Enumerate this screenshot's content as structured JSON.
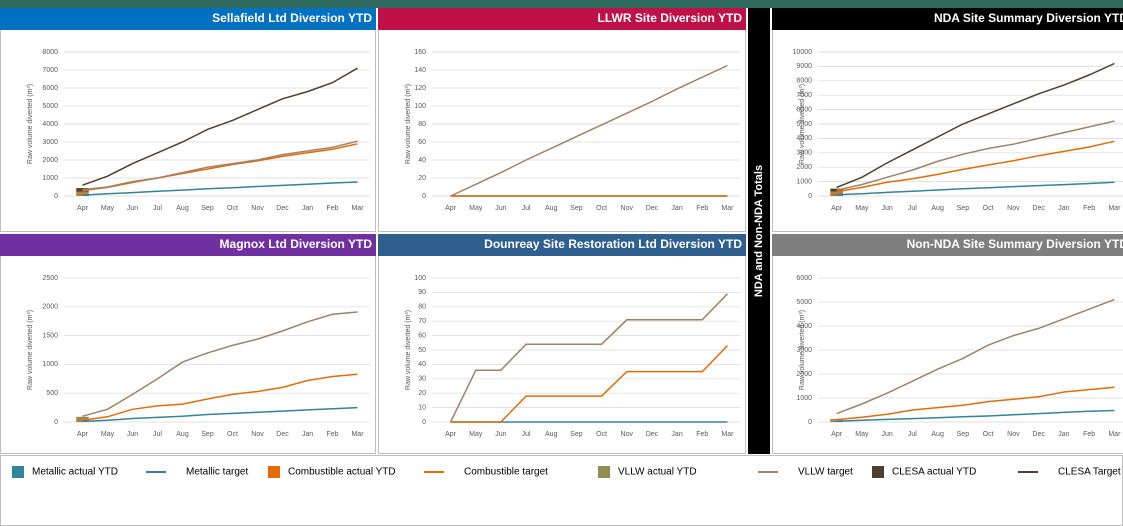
{
  "chart_data": [
    {
      "type": "line",
      "title": "Sellafield Ltd Diversion YTD",
      "title_color": "#0070c0",
      "categories": [
        "Apr",
        "May",
        "Jun",
        "Jul",
        "Aug",
        "Sep",
        "Oct",
        "Nov",
        "Dec",
        "Jan",
        "Feb",
        "Mar"
      ],
      "ylabel": "Raw volume diverted (m³)",
      "ylim": [
        0,
        8000
      ],
      "yticks": [
        0,
        1000,
        2000,
        3000,
        4000,
        5000,
        6000,
        7000,
        8000
      ],
      "grid": true,
      "series": [
        {
          "values": [
            40,
            null,
            null,
            null,
            null,
            null,
            null,
            null,
            null,
            null,
            null,
            null
          ]
        },
        {
          "values": [
            50,
            120,
            190,
            260,
            330,
            400,
            460,
            530,
            590,
            650,
            720,
            780
          ]
        },
        {
          "values": [
            120,
            null,
            null,
            null,
            null,
            null,
            null,
            null,
            null,
            null,
            null,
            null
          ]
        },
        {
          "values": [
            300,
            480,
            750,
            1000,
            1250,
            1500,
            1750,
            1950,
            2200,
            2400,
            2600,
            2900
          ]
        },
        {
          "values": [
            80,
            null,
            null,
            null,
            null,
            null,
            null,
            null,
            null,
            null,
            null,
            null
          ]
        },
        {
          "values": [
            350,
            500,
            800,
            1000,
            1300,
            1600,
            1800,
            2000,
            2300,
            2500,
            2700,
            3050
          ]
        },
        {
          "values": [
            200,
            null,
            null,
            null,
            null,
            null,
            null,
            null,
            null,
            null,
            null,
            null
          ]
        },
        {
          "values": [
            600,
            1100,
            1800,
            2400,
            3000,
            3700,
            4200,
            4800,
            5400,
            5800,
            6300,
            7100
          ]
        }
      ]
    },
    {
      "type": "line",
      "title": "LLWR Site Diversion YTD",
      "title_color": "#c0104a",
      "categories": [
        "Apr",
        "May",
        "Jun",
        "Jul",
        "Aug",
        "Sep",
        "Oct",
        "Nov",
        "Dec",
        "Jan",
        "Feb",
        "Mar"
      ],
      "ylabel": "Raw volume diverted (m³)",
      "ylim": [
        0,
        160
      ],
      "yticks": [
        0,
        20,
        40,
        60,
        80,
        100,
        120,
        140,
        160
      ],
      "grid": true,
      "series": [
        {
          "values": [
            null,
            null,
            null,
            null,
            null,
            null,
            null,
            null,
            null,
            null,
            null,
            null
          ]
        },
        {
          "values": [
            0,
            0,
            0,
            0,
            0,
            0,
            0,
            0,
            0,
            0,
            0,
            0
          ]
        },
        {
          "values": [
            null,
            null,
            null,
            null,
            null,
            null,
            null,
            null,
            null,
            null,
            null,
            null
          ]
        },
        {
          "values": [
            0,
            0,
            0,
            0,
            0,
            0,
            0,
            0,
            0,
            0,
            0,
            0
          ]
        },
        {
          "values": [
            null,
            null,
            null,
            null,
            null,
            null,
            null,
            null,
            null,
            null,
            null,
            null
          ]
        },
        {
          "values": [
            0,
            13,
            26,
            40,
            53,
            66,
            79,
            92,
            105,
            119,
            132,
            145
          ]
        },
        {
          "values": [
            null,
            null,
            null,
            null,
            null,
            null,
            null,
            null,
            null,
            null,
            null,
            null
          ]
        },
        {
          "values": [
            null,
            null,
            null,
            null,
            null,
            null,
            null,
            null,
            null,
            null,
            null,
            null
          ]
        }
      ]
    },
    {
      "type": "line",
      "title": "NDA Site Summary Diversion YTD",
      "title_color": "#000000",
      "categories": [
        "Apr",
        "May",
        "Jun",
        "Jul",
        "Aug",
        "Sep",
        "Oct",
        "Nov",
        "Dec",
        "Jan",
        "Feb",
        "Mar"
      ],
      "ylabel": "Raw volume diverted (m³)",
      "ylim": [
        0,
        10000
      ],
      "yticks": [
        0,
        1000,
        2000,
        3000,
        4000,
        5000,
        6000,
        7000,
        8000,
        9000,
        10000
      ],
      "grid": true,
      "series": [
        {
          "values": [
            60,
            null,
            null,
            null,
            null,
            null,
            null,
            null,
            null,
            null,
            null,
            null
          ]
        },
        {
          "values": [
            80,
            150,
            250,
            330,
            420,
            500,
            570,
            650,
            720,
            790,
            870,
            950
          ]
        },
        {
          "values": [
            150,
            null,
            null,
            null,
            null,
            null,
            null,
            null,
            null,
            null,
            null,
            null
          ]
        },
        {
          "values": [
            300,
            600,
            950,
            1200,
            1500,
            1850,
            2150,
            2450,
            2800,
            3100,
            3400,
            3800
          ]
        },
        {
          "values": [
            100,
            null,
            null,
            null,
            null,
            null,
            null,
            null,
            null,
            null,
            null,
            null
          ]
        },
        {
          "values": [
            400,
            800,
            1300,
            1800,
            2400,
            2900,
            3300,
            3600,
            4000,
            4400,
            4800,
            5200
          ]
        },
        {
          "values": [
            200,
            null,
            null,
            null,
            null,
            null,
            null,
            null,
            null,
            null,
            null,
            null
          ]
        },
        {
          "values": [
            600,
            1300,
            2300,
            3200,
            4100,
            5000,
            5700,
            6400,
            7100,
            7700,
            8400,
            9200
          ]
        }
      ]
    },
    {
      "type": "line",
      "title": "Magnox Ltd Diversion YTD",
      "title_color": "#7030a0",
      "categories": [
        "Apr",
        "May",
        "Jun",
        "Jul",
        "Aug",
        "Sep",
        "Oct",
        "Nov",
        "Dec",
        "Jan",
        "Feb",
        "Mar"
      ],
      "ylabel": "Raw volume diverted (m³)",
      "ylim": [
        0,
        2500
      ],
      "yticks": [
        0,
        500,
        1000,
        1500,
        2000,
        2500
      ],
      "grid": true,
      "series": [
        {
          "values": [
            10,
            null,
            null,
            null,
            null,
            null,
            null,
            null,
            null,
            null,
            null,
            null
          ]
        },
        {
          "values": [
            10,
            30,
            60,
            80,
            100,
            130,
            150,
            170,
            190,
            210,
            230,
            250
          ]
        },
        {
          "values": [
            25,
            null,
            null,
            null,
            null,
            null,
            null,
            null,
            null,
            null,
            null,
            null
          ]
        },
        {
          "values": [
            30,
            90,
            220,
            280,
            310,
            400,
            480,
            530,
            600,
            720,
            790,
            830
          ]
        },
        {
          "values": [
            55,
            null,
            null,
            null,
            null,
            null,
            null,
            null,
            null,
            null,
            null,
            null
          ]
        },
        {
          "values": [
            100,
            220,
            480,
            750,
            1040,
            1200,
            1330,
            1440,
            1580,
            1740,
            1870,
            1910
          ]
        },
        {
          "values": [
            null,
            null,
            null,
            null,
            null,
            null,
            null,
            null,
            null,
            null,
            null,
            null
          ]
        },
        {
          "values": [
            null,
            null,
            null,
            null,
            null,
            null,
            null,
            null,
            null,
            null,
            null,
            null
          ]
        }
      ]
    },
    {
      "type": "line",
      "title": "Dounreay Site Restoration Ltd Diversion YTD",
      "title_color": "#2f5f8f",
      "categories": [
        "Apr",
        "May",
        "Jun",
        "Jul",
        "Aug",
        "Sep",
        "Oct",
        "Nov",
        "Dec",
        "Jan",
        "Feb",
        "Mar"
      ],
      "ylabel": "Raw volume diverted (m³)",
      "ylim": [
        0,
        100
      ],
      "yticks": [
        0,
        10,
        20,
        30,
        40,
        50,
        60,
        70,
        80,
        90,
        100
      ],
      "grid": true,
      "series": [
        {
          "values": [
            null,
            null,
            null,
            null,
            null,
            null,
            null,
            null,
            null,
            null,
            null,
            null
          ]
        },
        {
          "values": [
            0,
            0,
            0,
            0,
            0,
            0,
            0,
            0,
            0,
            0,
            0,
            0
          ]
        },
        {
          "values": [
            null,
            null,
            null,
            null,
            null,
            null,
            null,
            null,
            null,
            null,
            null,
            null
          ]
        },
        {
          "values": [
            0,
            0,
            0,
            18,
            18,
            18,
            18,
            35,
            35,
            35,
            35,
            53
          ]
        },
        {
          "values": [
            null,
            null,
            null,
            null,
            null,
            null,
            null,
            null,
            null,
            null,
            null,
            null
          ]
        },
        {
          "values": [
            0,
            36,
            36,
            54,
            54,
            54,
            54,
            71,
            71,
            71,
            71,
            89
          ]
        },
        {
          "values": [
            null,
            null,
            null,
            null,
            null,
            null,
            null,
            null,
            null,
            null,
            null,
            null
          ]
        },
        {
          "values": [
            null,
            null,
            null,
            null,
            null,
            null,
            null,
            null,
            null,
            null,
            null,
            null
          ]
        }
      ]
    },
    {
      "type": "line",
      "title": "Non-NDA Site Summary Diversion YTD",
      "title_color": "#7f7f7f",
      "categories": [
        "Apr",
        "May",
        "Jun",
        "Jul",
        "Aug",
        "Sep",
        "Oct",
        "Nov",
        "Dec",
        "Jan",
        "Feb",
        "Mar"
      ],
      "ylabel": "Raw volume diverted (m³)",
      "ylim": [
        0,
        6000
      ],
      "yticks": [
        0,
        1000,
        2000,
        3000,
        4000,
        5000,
        6000
      ],
      "grid": true,
      "series": [
        {
          "values": [
            20,
            null,
            null,
            null,
            null,
            null,
            null,
            null,
            null,
            null,
            null,
            null
          ]
        },
        {
          "values": [
            30,
            70,
            110,
            140,
            180,
            220,
            250,
            300,
            350,
            400,
            450,
            480
          ]
        },
        {
          "values": [
            50,
            null,
            null,
            null,
            null,
            null,
            null,
            null,
            null,
            null,
            null,
            null
          ]
        },
        {
          "values": [
            100,
            200,
            320,
            500,
            600,
            700,
            850,
            950,
            1050,
            1250,
            1350,
            1450
          ]
        },
        {
          "values": [
            60,
            null,
            null,
            null,
            null,
            null,
            null,
            null,
            null,
            null,
            null,
            null
          ]
        },
        {
          "values": [
            350,
            750,
            1200,
            1700,
            2200,
            2650,
            3200,
            3600,
            3900,
            4300,
            4700,
            5100
          ]
        },
        {
          "values": [
            null,
            null,
            null,
            null,
            null,
            null,
            null,
            null,
            null,
            null,
            null,
            null
          ]
        },
        {
          "values": [
            null,
            null,
            null,
            null,
            null,
            null,
            null,
            null,
            null,
            null,
            null,
            null
          ]
        }
      ]
    }
  ],
  "side_label": "NDA and Non-NDA Totals",
  "legend": [
    {
      "name": "Metallic actual YTD",
      "color": "#31849b",
      "kind": "bar"
    },
    {
      "name": "Metallic target",
      "color": "#31849b",
      "kind": "line"
    },
    {
      "name": "Combustible actual YTD",
      "color": "#e36c09",
      "kind": "bar"
    },
    {
      "name": "Combustible target",
      "color": "#e36c09",
      "kind": "line"
    },
    {
      "name": "VLLW actual YTD",
      "color": "#948a54",
      "kind": "bar"
    },
    {
      "name": "VLLW target",
      "color": "#a08266",
      "kind": "line"
    },
    {
      "name": "CLESA actual YTD",
      "color": "#4e3f2f",
      "kind": "bar"
    },
    {
      "name": "CLESA Target",
      "color": "#4e3f2f",
      "kind": "line"
    }
  ]
}
